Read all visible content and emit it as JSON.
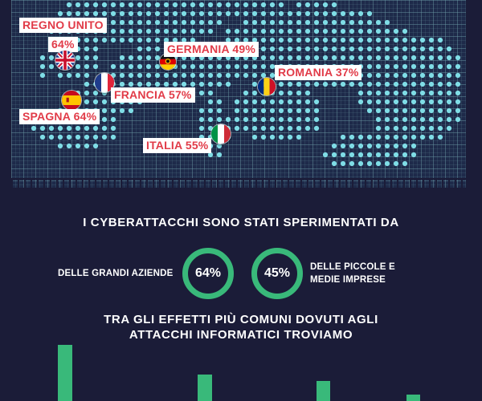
{
  "map": {
    "countries": [
      {
        "name": "REGNO UNITO",
        "percent": "64%",
        "flag": "uk-flag-icon"
      },
      {
        "name": "GERMANIA",
        "percent": "49%",
        "flag": "germany-flag-icon"
      },
      {
        "name": "ROMANIA",
        "percent": "37%",
        "flag": "romania-flag-icon"
      },
      {
        "name": "FRANCIA",
        "percent": "57%",
        "flag": "france-flag-icon"
      },
      {
        "name": "SPAGNA",
        "percent": "64%",
        "flag": "spain-flag-icon"
      },
      {
        "name": "ITALIA",
        "percent": "55%",
        "flag": "italy-flag-icon"
      }
    ],
    "label_color": "#e13b48",
    "dot_color": "#7fdde6"
  },
  "labels": {
    "uk_line1": "REGNO UNITO",
    "uk_line2": "64%",
    "germany": "GERMANIA 49%",
    "romania": "ROMANIA 37%",
    "france": "FRANCIA 57%",
    "spain": "SPAGNA 64%",
    "italy": "ITALIA 55%"
  },
  "stats": {
    "heading": "I CYBERATTACCHI SONO STATI SPERIMENTATI DA",
    "large_label": "DELLE GRANDI AZIENDE",
    "large_value": "64%",
    "small_value": "45%",
    "small_label_line1": "DELLE PICCOLE E",
    "small_label_line2": "MEDIE IMPRESE",
    "ring_color": "#39b97a"
  },
  "effects": {
    "heading_line1": "TRA GLI EFFETTI PIÙ COMUNI DOVUTI AGLI",
    "heading_line2": "ATTACCHI INFORMATICI TROVIAMO",
    "bar_color": "#39b97a"
  }
}
